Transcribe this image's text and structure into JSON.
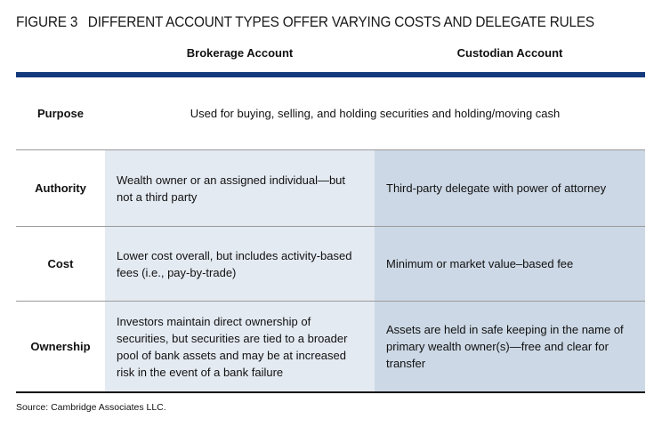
{
  "title": {
    "number": "FIGURE 3",
    "text": "DIFFERENT ACCOUNT TYPES OFFER VARYING COSTS AND DELEGATE RULES"
  },
  "columns": [
    "Brokerage Account",
    "Custodian Account"
  ],
  "rows": [
    {
      "label": "Purpose",
      "shared": "Used for buying, selling, and holding securities and holding/moving cash"
    },
    {
      "label": "Authority",
      "brokerage": "Wealth owner or an assigned individual—but not a third party",
      "custodian": "Third-party delegate with power of attorney"
    },
    {
      "label": "Cost",
      "brokerage": "Lower cost overall, but includes activity-based fees (i.e., pay-by-trade)",
      "custodian": "Minimum or market value–based fee"
    },
    {
      "label": "Ownership",
      "brokerage": "Investors maintain direct ownership of securities, but securities are tied to a broader pool of bank assets and may be at increased risk in the event of a bank failure",
      "custodian": "Assets are held in safe keeping in the name of primary wealth owner(s)—free and clear for transfer"
    }
  ],
  "source": "Source: Cambridge Associates LLC.",
  "colors": {
    "accent": "#123a7c",
    "brokerage_bg": "#e4eaf2",
    "custodian_bg": "#ccd8e5"
  }
}
